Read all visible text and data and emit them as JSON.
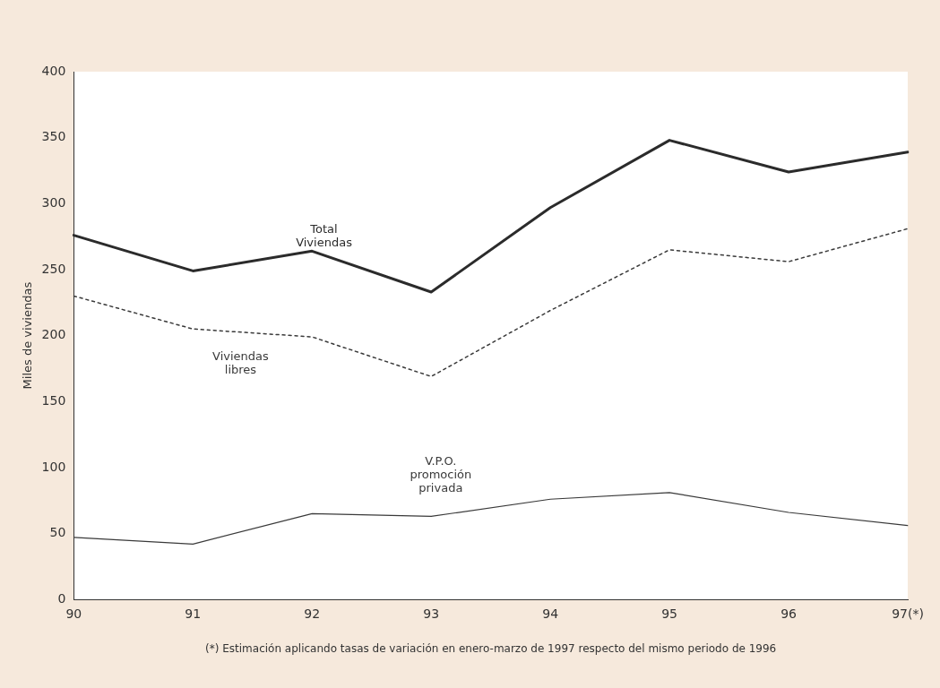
{
  "chart_data": {
    "type": "line",
    "ylabel": "Miles de viviendas",
    "categories": [
      "90",
      "91",
      "92",
      "93",
      "94",
      "95",
      "96",
      "97(*)"
    ],
    "ylim": [
      0,
      400
    ],
    "yticks": [
      0,
      50,
      100,
      150,
      200,
      250,
      300,
      350,
      400
    ],
    "grid": false,
    "legend": false,
    "marker": "none",
    "series": [
      {
        "name": "Total Viviendas",
        "color": "#2b2b2b",
        "line_style": "solid",
        "values": [
          276,
          249,
          264,
          233,
          297,
          348,
          324,
          339
        ]
      },
      {
        "name": "Viviendas libres",
        "color": "#3a3a3a",
        "line_style": "dotted",
        "values": [
          230,
          205,
          199,
          169,
          219,
          265,
          256,
          281
        ]
      },
      {
        "name": "V.P.O. promoción privada",
        "color": "#3a3a3a",
        "line_style": "solid",
        "values": [
          47,
          42,
          65,
          63,
          76,
          81,
          66,
          56
        ]
      }
    ],
    "annotations": [
      "(*) Estimación aplicando tasas de variación en enero-marzo de 1997 respecto del mismo periodo de 1996"
    ]
  }
}
